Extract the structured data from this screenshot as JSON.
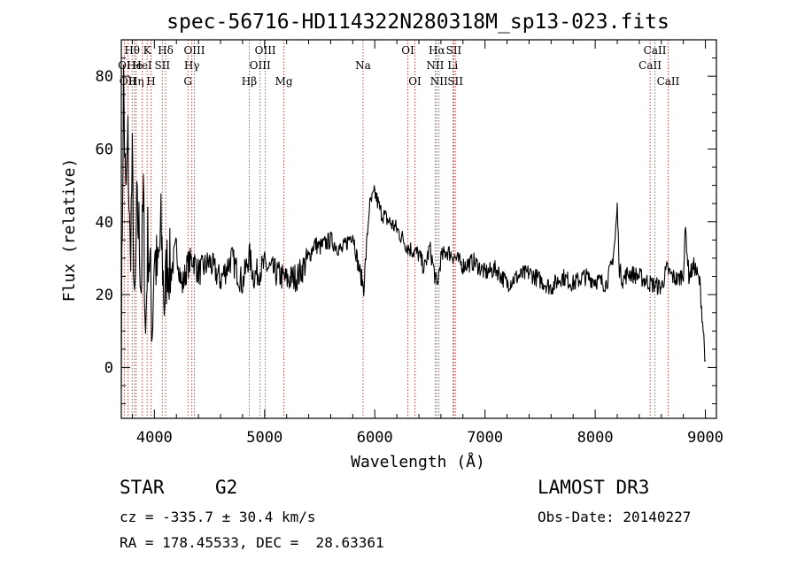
{
  "chart_data": {
    "type": "line",
    "title": "spec-56716-HD114322N280318M_sp13-023.fits",
    "xlabel": "Wavelength (Å)",
    "ylabel": "Flux (relative)",
    "xlim": [
      3700,
      9100
    ],
    "ylim": [
      -14,
      90
    ],
    "xticks": [
      4000,
      5000,
      6000,
      7000,
      8000,
      9000
    ],
    "yticks": [
      0,
      20,
      40,
      60,
      80
    ],
    "series": [
      {
        "name": "flux",
        "x": [
          3700,
          3720,
          3740,
          3760,
          3780,
          3800,
          3820,
          3840,
          3860,
          3880,
          3900,
          3920,
          3940,
          3960,
          3980,
          4000,
          4030,
          4060,
          4090,
          4120,
          4150,
          4200,
          4250,
          4300,
          4350,
          4400,
          4500,
          4600,
          4700,
          4800,
          4860,
          4900,
          5000,
          5100,
          5200,
          5300,
          5400,
          5450,
          5500,
          5600,
          5700,
          5800,
          5850,
          5900,
          5950,
          6000,
          6050,
          6100,
          6200,
          6300,
          6400,
          6450,
          6500,
          6563,
          6600,
          6650,
          6700,
          6800,
          6900,
          7000,
          7100,
          7200,
          7300,
          7400,
          7500,
          7600,
          7700,
          7800,
          7900,
          8000,
          8100,
          8150,
          8180,
          8200,
          8220,
          8250,
          8300,
          8400,
          8500,
          8600,
          8650,
          8700,
          8750,
          8800,
          8820,
          8850,
          8900,
          8950,
          9000
        ],
        "y": [
          5,
          78,
          45,
          62,
          30,
          55,
          12,
          42,
          38,
          22,
          48,
          8,
          35,
          28,
          10,
          32,
          25,
          38,
          18,
          30,
          26,
          33,
          22,
          28,
          30,
          26,
          29,
          24,
          30,
          23,
          31,
          25,
          28,
          26,
          24,
          25,
          30,
          34,
          33,
          35,
          32,
          37,
          28,
          22,
          44,
          48,
          43,
          41,
          38,
          33,
          31,
          27,
          33,
          22,
          30,
          32,
          31,
          28,
          29,
          26,
          27,
          23,
          25,
          26,
          24,
          22,
          25,
          23,
          25,
          24,
          23,
          28,
          35,
          44,
          27,
          24,
          26,
          25,
          23,
          22,
          27,
          25,
          24,
          26,
          38,
          25,
          28,
          23,
          2
        ]
      }
    ],
    "spectral_lines": [
      {
        "label": "OI",
        "wave": 3727,
        "row": 2
      },
      {
        "label": "OII",
        "wave": 3760,
        "row": 3
      },
      {
        "label": "Hθ",
        "wave": 3798,
        "row": 1
      },
      {
        "label": "He",
        "wave": 3820,
        "row": 2
      },
      {
        "label": "Hη",
        "wave": 3835,
        "row": 3
      },
      {
        "label": "K",
        "wave": 3934,
        "row": 1
      },
      {
        "label": "HeI",
        "wave": 3889,
        "row": 2
      },
      {
        "label": "H",
        "wave": 3969,
        "row": 3
      },
      {
        "label": "SII",
        "wave": 4072,
        "row": 2
      },
      {
        "label": "Hδ",
        "wave": 4102,
        "row": 1
      },
      {
        "label": "G",
        "wave": 4304,
        "row": 3
      },
      {
        "label": "Hγ",
        "wave": 4340,
        "row": 2
      },
      {
        "label": "OIII",
        "wave": 4363,
        "row": 1
      },
      {
        "label": "Hβ",
        "wave": 4861,
        "row": 3
      },
      {
        "label": "OIII",
        "wave": 4959,
        "row": 2
      },
      {
        "label": "OIII",
        "wave": 5007,
        "row": 1
      },
      {
        "label": "Mg",
        "wave": 5175,
        "row": 3
      },
      {
        "label": "Na",
        "wave": 5893,
        "row": 2
      },
      {
        "label": "OI",
        "wave": 6300,
        "row": 1
      },
      {
        "label": "OI",
        "wave": 6364,
        "row": 3
      },
      {
        "label": "NII",
        "wave": 6548,
        "row": 2
      },
      {
        "label": "NII",
        "wave": 6583,
        "row": 3
      },
      {
        "label": "Hα",
        "wave": 6563,
        "row": 1
      },
      {
        "label": "SII",
        "wave": 6717,
        "row": 1
      },
      {
        "label": "Li",
        "wave": 6708,
        "row": 2
      },
      {
        "label": "SII",
        "wave": 6731,
        "row": 3
      },
      {
        "label": "CaII",
        "wave": 8498,
        "row": 2
      },
      {
        "label": "CaII",
        "wave": 8542,
        "row": 1
      },
      {
        "label": "CaII",
        "wave": 8662,
        "row": 3
      }
    ]
  },
  "info": {
    "object_type": "STAR",
    "subclass": "G2",
    "redshift": "cz = -335.7 ± 30.4 km/s",
    "coords": "RA = 178.45533, DEC =  28.63361",
    "survey": "LAMOST DR3",
    "obs_date": "Obs-Date: 20140227"
  }
}
